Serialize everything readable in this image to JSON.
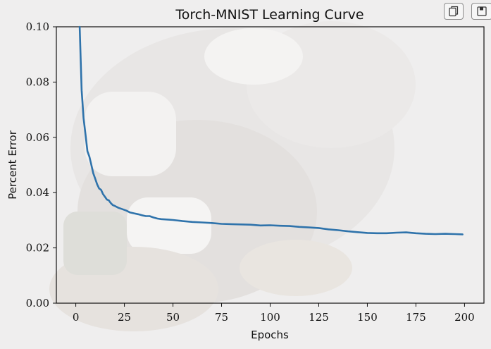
{
  "colors": {
    "background": "#f0efef",
    "line": "#2f73ab",
    "axis": "#111111"
  },
  "toolbar": {
    "copy_icon": "copy-icon",
    "save_icon": "save-icon"
  },
  "chart_data": {
    "type": "line",
    "title": "Torch-MNIST Learning Curve",
    "xlabel": "Epochs",
    "ylabel": "Percent Error",
    "xlim": [
      -10,
      210
    ],
    "ylim": [
      0.0,
      0.1
    ],
    "xticks": [
      0,
      25,
      50,
      75,
      100,
      125,
      150,
      175,
      200
    ],
    "yticks": [
      "0.00",
      "0.02",
      "0.04",
      "0.06",
      "0.08",
      "0.10"
    ],
    "grid": false,
    "series": [
      {
        "x": [
          2,
          3,
          4,
          5,
          6,
          7,
          8,
          9,
          10,
          11,
          12,
          13,
          14,
          15,
          16,
          17,
          18,
          19,
          20,
          22,
          24,
          26,
          28,
          30,
          32,
          34,
          36,
          38,
          40,
          42,
          44,
          46,
          48,
          50,
          55,
          60,
          65,
          70,
          75,
          80,
          85,
          90,
          95,
          100,
          105,
          110,
          115,
          120,
          125,
          130,
          135,
          140,
          145,
          150,
          155,
          160,
          165,
          170,
          175,
          180,
          185,
          190,
          195,
          199
        ],
        "y": [
          0.1,
          0.077,
          0.067,
          0.061,
          0.055,
          0.053,
          0.05,
          0.047,
          0.045,
          0.043,
          0.0415,
          0.041,
          0.0395,
          0.0385,
          0.0375,
          0.0372,
          0.0362,
          0.0355,
          0.0352,
          0.0345,
          0.034,
          0.0335,
          0.0328,
          0.0325,
          0.0322,
          0.0318,
          0.0315,
          0.0315,
          0.031,
          0.0306,
          0.0304,
          0.0303,
          0.0302,
          0.0301,
          0.0297,
          0.0294,
          0.0292,
          0.029,
          0.0287,
          0.0286,
          0.0285,
          0.0284,
          0.0281,
          0.0282,
          0.028,
          0.0279,
          0.0276,
          0.0274,
          0.0272,
          0.0267,
          0.0264,
          0.026,
          0.0257,
          0.0254,
          0.0253,
          0.0253,
          0.0255,
          0.0256,
          0.0253,
          0.0251,
          0.025,
          0.0251,
          0.025,
          0.0249
        ]
      }
    ]
  }
}
